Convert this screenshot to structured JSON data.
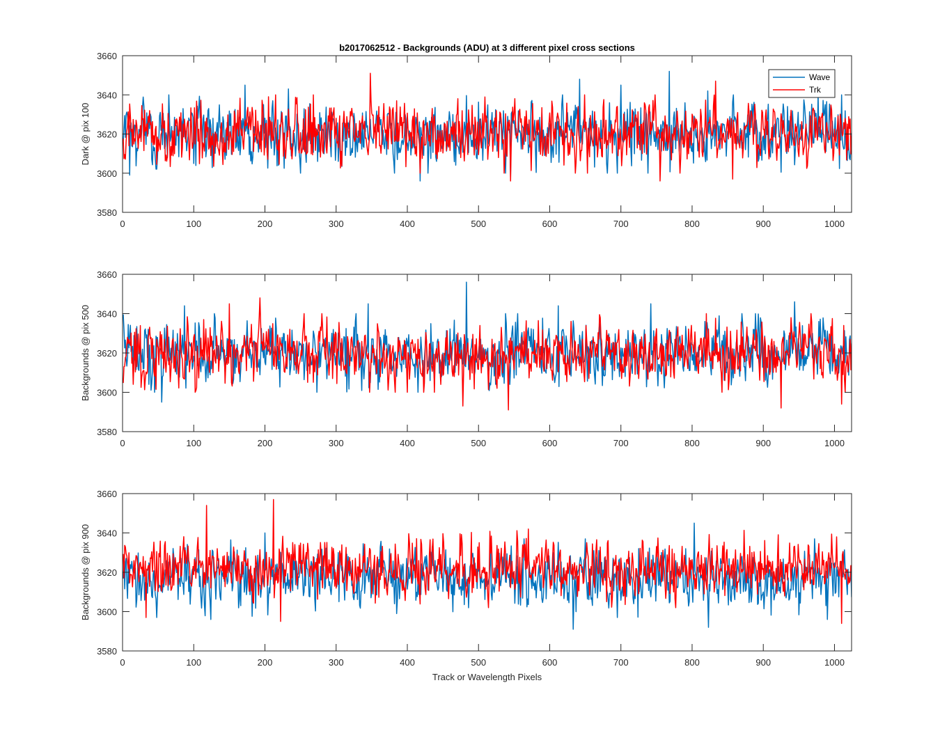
{
  "chart_data": [
    {
      "type": "line",
      "title": "b2017062512 - Backgrounds (ADU) at 3 different pixel cross sections",
      "xlabel": "",
      "ylabel": "Dark @ pix 100",
      "xlim": [
        0,
        1024
      ],
      "ylim": [
        3580,
        3660
      ],
      "xticks": [
        0,
        100,
        200,
        300,
        400,
        500,
        600,
        700,
        800,
        900,
        1000
      ],
      "yticks": [
        3580,
        3600,
        3620,
        3640,
        3660
      ],
      "legend": {
        "position": "top-right",
        "entries": [
          "Wave",
          "Trk"
        ]
      },
      "series": [
        {
          "name": "Wave",
          "color": "#0072BD",
          "mean": 3620,
          "noise_sd": 7.5,
          "highlights": [
            [
              10,
              3599
            ],
            [
              65,
              3640
            ],
            [
              172,
              3645
            ],
            [
              233,
              3643
            ],
            [
              418,
              3596
            ],
            [
              545,
              3598
            ],
            [
              642,
              3648
            ],
            [
              700,
              3645
            ],
            [
              768,
              3652
            ],
            [
              822,
              3642
            ],
            [
              1010,
              3640
            ]
          ]
        },
        {
          "name": "Trk",
          "color": "#FF0000",
          "mean": 3620,
          "noise_sd": 7.5,
          "highlights": [
            [
              205,
              3639
            ],
            [
              268,
              3640
            ],
            [
              348,
              3651
            ],
            [
              545,
              3596
            ],
            [
              755,
              3596
            ],
            [
              833,
              3647
            ],
            [
              857,
              3597
            ]
          ]
        }
      ]
    },
    {
      "type": "line",
      "title": "",
      "xlabel": "",
      "ylabel": "Backgrounds @ pix 500",
      "xlim": [
        0,
        1024
      ],
      "ylim": [
        3580,
        3660
      ],
      "xticks": [
        0,
        100,
        200,
        300,
        400,
        500,
        600,
        700,
        800,
        900,
        1000
      ],
      "yticks": [
        3580,
        3600,
        3620,
        3640,
        3660
      ],
      "series": [
        {
          "name": "Wave",
          "color": "#0072BD",
          "mean": 3620,
          "noise_sd": 7.5,
          "highlights": [
            [
              55,
              3595
            ],
            [
              87,
              3644
            ],
            [
              345,
              3645
            ],
            [
              483,
              3656
            ],
            [
              612,
              3644
            ],
            [
              742,
              3645
            ],
            [
              944,
              3646
            ],
            [
              1028,
              3598
            ]
          ]
        },
        {
          "name": "Trk",
          "color": "#FF0000",
          "mean": 3620,
          "noise_sd": 7.5,
          "highlights": [
            [
              150,
              3645
            ],
            [
              193,
              3648
            ],
            [
              478,
              3593
            ],
            [
              542,
              3591
            ],
            [
              925,
              3592
            ],
            [
              1010,
              3594
            ],
            [
              1015,
              3600
            ]
          ]
        }
      ]
    },
    {
      "type": "line",
      "title": "",
      "xlabel": "Track or Wavelength Pixels",
      "ylabel": "Backgrounds @ pix 900",
      "xlim": [
        0,
        1024
      ],
      "ylim": [
        3580,
        3660
      ],
      "xticks": [
        0,
        100,
        200,
        300,
        400,
        500,
        600,
        700,
        800,
        900,
        1000
      ],
      "yticks": [
        3580,
        3600,
        3620,
        3640,
        3660
      ],
      "series": [
        {
          "name": "Wave",
          "color": "#0072BD",
          "mean": 3617,
          "noise_sd": 7,
          "highlights": [
            [
              124,
              3596
            ],
            [
              200,
              3640
            ],
            [
              385,
              3599
            ],
            [
              633,
              3591
            ],
            [
              803,
              3645
            ],
            [
              823,
              3592
            ],
            [
              990,
              3596
            ]
          ]
        },
        {
          "name": "Trk",
          "color": "#FF0000",
          "mean": 3622,
          "noise_sd": 7,
          "highlights": [
            [
              33,
              3597
            ],
            [
              118,
              3654
            ],
            [
              212,
              3657
            ],
            [
              222,
              3595
            ],
            [
              570,
              3642
            ],
            [
              1010,
              3594
            ]
          ]
        }
      ]
    }
  ]
}
